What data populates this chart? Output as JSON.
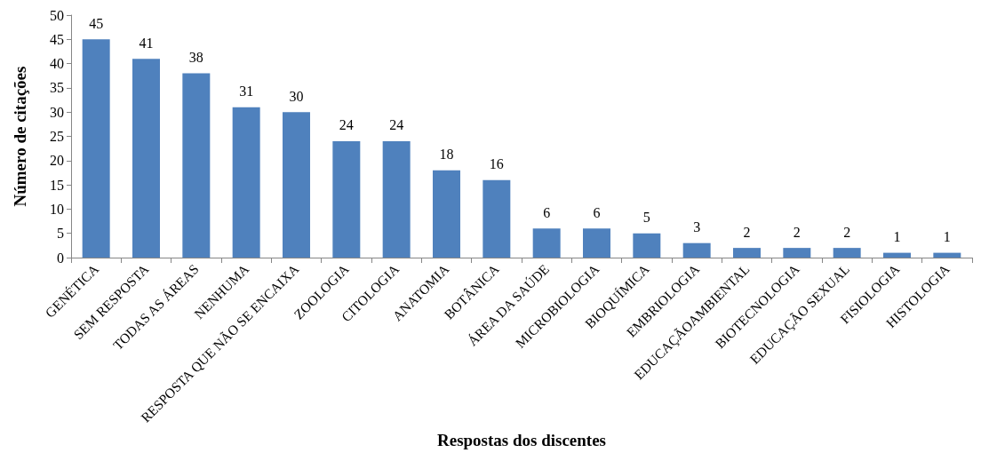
{
  "chart_data": {
    "type": "bar",
    "xlabel": "Respostas dos discentes",
    "ylabel": "Número de citações",
    "categories": [
      "GENÉTICA",
      "SEM RESPOSTA",
      "TODAS AS ÁREAS",
      "NENHUMA",
      "RESPOSTA QUE NÃO SE ENCAIXA",
      "ZOOLOGIA",
      "CITOLOGIA",
      "ANATOMIA",
      "BOTÂNICA",
      "ÁREA DA SAÚDE",
      "MICROBIOLOGIA",
      "BIOQUÍMICA",
      "EMBRIOLOGIA",
      "EDUCAÇÃOAMBIENTAL",
      "BIOTECNOLOGIA",
      "EDUCAÇÃO SEXUAL",
      "FISIOLOGIA",
      "HISTOLOGIA"
    ],
    "values": [
      45,
      41,
      38,
      31,
      30,
      24,
      24,
      18,
      16,
      6,
      6,
      5,
      3,
      2,
      2,
      2,
      1,
      1
    ],
    "color": "#4f81bd",
    "ylim": [
      0,
      50
    ],
    "yticks": [
      0,
      5,
      10,
      15,
      20,
      25,
      30,
      35,
      40,
      45,
      50
    ],
    "grid": false,
    "data_labels": true
  }
}
